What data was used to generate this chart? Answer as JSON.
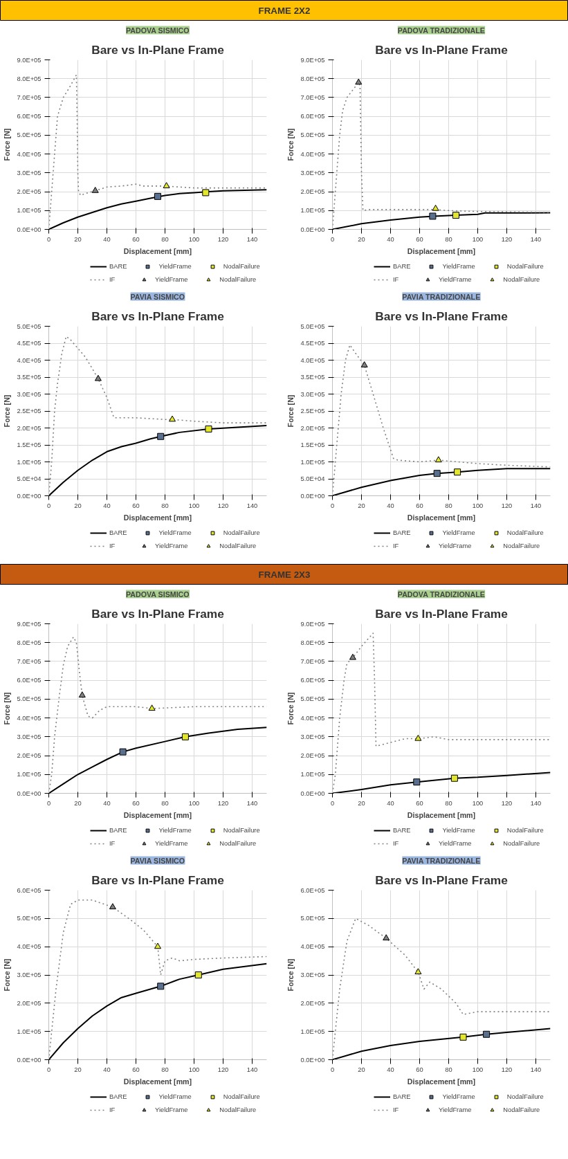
{
  "chart_data": [
    {
      "type": "other",
      "title": "FRAME 2X2"
    },
    {
      "type": "line",
      "subtitle": "PADOVA SISMICO",
      "title": "Bare vs In-Plane Frame",
      "xlabel": "Displacement [mm]",
      "ylabel": "Force [N]",
      "xlim": [
        0,
        150
      ],
      "xticks": [
        0,
        20,
        40,
        60,
        80,
        100,
        120,
        140
      ],
      "ylim": [
        0,
        900000
      ],
      "yticks": [
        {
          "value": 0,
          "label": "0.0E+00"
        },
        {
          "value": 100000,
          "label": "1.0E+05"
        },
        {
          "value": 200000,
          "label": "2.0E+05"
        },
        {
          "value": 300000,
          "label": "3.0E+05"
        },
        {
          "value": 400000,
          "label": "4.0E+05"
        },
        {
          "value": 500000,
          "label": "5.0E+05"
        },
        {
          "value": 600000,
          "label": "6.0E+05"
        },
        {
          "value": 700000,
          "label": "7.0E+05"
        },
        {
          "value": 800000,
          "label": "8.0E+05"
        },
        {
          "value": 900000,
          "label": "9.0E+05"
        }
      ],
      "grid": true,
      "legend": "bottom",
      "series": [
        {
          "name": "BARE",
          "type": "line",
          "line_style": "solid",
          "color": "#000000",
          "x": [
            0,
            10,
            20,
            30,
            40,
            50,
            60,
            70,
            80,
            90,
            100,
            110,
            120,
            130,
            150
          ],
          "values": [
            0,
            35000,
            65000,
            90000,
            115000,
            135000,
            150000,
            165000,
            180000,
            190000,
            195000,
            200000,
            205000,
            207000,
            210000
          ]
        },
        {
          "name": "YieldFrame",
          "type": "scatter",
          "marker": "square",
          "color": "#5a6f8e",
          "x": [
            75
          ],
          "values": [
            175000
          ]
        },
        {
          "name": "NodalFailure",
          "type": "scatter",
          "marker": "square",
          "color": "#e2e62c",
          "x": [
            108
          ],
          "values": [
            195000
          ]
        },
        {
          "name": "IF",
          "type": "line",
          "line_style": "dotted",
          "color": "#808080",
          "x": [
            0,
            1,
            3,
            5,
            6,
            8,
            10,
            14,
            19,
            19.5,
            20,
            20.5,
            22,
            25,
            32,
            40,
            50,
            60,
            65,
            80,
            90,
            100,
            120,
            150
          ],
          "values": [
            0,
            100000,
            300000,
            500000,
            600000,
            650000,
            700000,
            750000,
            820000,
            600000,
            300000,
            200000,
            180000,
            190000,
            205000,
            225000,
            230000,
            240000,
            230000,
            230000,
            225000,
            220000,
            220000,
            220000
          ]
        },
        {
          "name": "YieldFrame",
          "type": "scatter",
          "marker": "triangle",
          "color": "#7f7f7f",
          "x": [
            32
          ],
          "values": [
            205000
          ]
        },
        {
          "name": "NodalFailure",
          "type": "scatter",
          "marker": "triangle",
          "color": "#e2e62c",
          "x": [
            81
          ],
          "values": [
            230000
          ]
        }
      ]
    },
    {
      "type": "line",
      "subtitle": "PADOVA TRADIZIONALE",
      "title": "Bare vs In-Plane Frame",
      "xlabel": "Displacement [mm]",
      "ylabel": "Force [N]",
      "xlim": [
        0,
        150
      ],
      "xticks": [
        0,
        20,
        40,
        60,
        80,
        100,
        120,
        140
      ],
      "ylim": [
        0,
        900000
      ],
      "yticks": [
        {
          "value": 0,
          "label": "0.0E+00"
        },
        {
          "value": 100000,
          "label": "1.0E+05"
        },
        {
          "value": 200000,
          "label": "2.0E+05"
        },
        {
          "value": 300000,
          "label": "3.0E+05"
        },
        {
          "value": 400000,
          "label": "4.0E+05"
        },
        {
          "value": 500000,
          "label": "5.0E+05"
        },
        {
          "value": 600000,
          "label": "6.0E+05"
        },
        {
          "value": 700000,
          "label": "7.0E+05"
        },
        {
          "value": 800000,
          "label": "8.0E+05"
        },
        {
          "value": 900000,
          "label": "9.0E+05"
        }
      ],
      "grid": true,
      "legend": "bottom",
      "series": [
        {
          "name": "BARE",
          "type": "line",
          "line_style": "solid",
          "color": "#000000",
          "x": [
            0,
            20,
            40,
            60,
            70,
            85,
            100,
            105,
            150
          ],
          "values": [
            0,
            30000,
            50000,
            65000,
            70000,
            75000,
            80000,
            87000,
            88000
          ]
        },
        {
          "name": "YieldFrame",
          "type": "scatter",
          "marker": "square",
          "color": "#5a6f8e",
          "x": [
            69
          ],
          "values": [
            70000
          ]
        },
        {
          "name": "NodalFailure",
          "type": "scatter",
          "marker": "square",
          "color": "#e2e62c",
          "x": [
            85
          ],
          "values": [
            75000
          ]
        },
        {
          "name": "IF",
          "type": "line",
          "line_style": "dotted",
          "color": "#808080",
          "x": [
            0,
            1,
            3,
            5,
            7,
            10,
            18,
            19,
            20,
            21,
            25,
            40,
            60,
            70,
            80,
            100,
            150
          ],
          "values": [
            0,
            100000,
            300000,
            500000,
            630000,
            700000,
            780000,
            760000,
            300000,
            100000,
            105000,
            105000,
            105000,
            105000,
            100000,
            95000,
            90000
          ]
        },
        {
          "name": "YieldFrame",
          "type": "scatter",
          "marker": "triangle",
          "color": "#7f7f7f",
          "x": [
            18
          ],
          "values": [
            780000
          ]
        },
        {
          "name": "NodalFailure",
          "type": "scatter",
          "marker": "triangle",
          "color": "#e2e62c",
          "x": [
            71
          ],
          "values": [
            110000
          ]
        }
      ]
    },
    {
      "type": "line",
      "subtitle": "PAVIA SISMICO",
      "title": "Bare vs In-Plane Frame",
      "xlabel": "Displacement [mm]",
      "ylabel": "Force [N]",
      "xlim": [
        0,
        150
      ],
      "xticks": [
        0,
        20,
        40,
        60,
        80,
        100,
        120,
        140
      ],
      "ylim": [
        0,
        500000
      ],
      "yticks": [
        {
          "value": 0,
          "label": "0.0E+00"
        },
        {
          "value": 50000,
          "label": "5.0E+04"
        },
        {
          "value": 100000,
          "label": "1.0E+05"
        },
        {
          "value": 150000,
          "label": "1.5E+05"
        },
        {
          "value": 200000,
          "label": "2.0E+05"
        },
        {
          "value": 250000,
          "label": "2.5E+05"
        },
        {
          "value": 300000,
          "label": "3.0E+05"
        },
        {
          "value": 350000,
          "label": "3.5E+05"
        },
        {
          "value": 400000,
          "label": "4.0E+05"
        },
        {
          "value": 450000,
          "label": "4.5E+05"
        },
        {
          "value": 500000,
          "label": "5.0E+05"
        }
      ],
      "grid": true,
      "legend": "bottom",
      "series": [
        {
          "name": "BARE",
          "type": "line",
          "line_style": "solid",
          "color": "#000000",
          "x": [
            0,
            10,
            20,
            30,
            40,
            50,
            60,
            70,
            77,
            90,
            110,
            130,
            150
          ],
          "values": [
            0,
            40000,
            75000,
            105000,
            130000,
            145000,
            155000,
            168000,
            175000,
            187000,
            197000,
            202000,
            207000
          ]
        },
        {
          "name": "YieldFrame",
          "type": "scatter",
          "marker": "square",
          "color": "#5a6f8e",
          "x": [
            77
          ],
          "values": [
            175000
          ]
        },
        {
          "name": "NodalFailure",
          "type": "scatter",
          "marker": "square",
          "color": "#e2e62c",
          "x": [
            110
          ],
          "values": [
            197000
          ]
        },
        {
          "name": "IF",
          "type": "line",
          "line_style": "dotted",
          "color": "#808080",
          "x": [
            0,
            2,
            4,
            6,
            9,
            12,
            15,
            20,
            25,
            30,
            34,
            40,
            44,
            45,
            60,
            80,
            85,
            100,
            120,
            150
          ],
          "values": [
            0,
            100000,
            250000,
            330000,
            420000,
            470000,
            460000,
            435000,
            410000,
            375000,
            345000,
            290000,
            240000,
            230000,
            230000,
            225000,
            225000,
            220000,
            215000,
            215000
          ]
        },
        {
          "name": "YieldFrame",
          "type": "scatter",
          "marker": "triangle",
          "color": "#7f7f7f",
          "x": [
            34
          ],
          "values": [
            345000
          ]
        },
        {
          "name": "NodalFailure",
          "type": "scatter",
          "marker": "triangle",
          "color": "#e2e62c",
          "x": [
            85
          ],
          "values": [
            225000
          ]
        }
      ]
    },
    {
      "type": "line",
      "subtitle": "PAVIA TRADIZIONALE",
      "title": "Bare vs In-Plane Frame",
      "xlabel": "Displacement [mm]",
      "ylabel": "Force [N]",
      "xlim": [
        0,
        150
      ],
      "xticks": [
        0,
        20,
        40,
        60,
        80,
        100,
        120,
        140
      ],
      "ylim": [
        0,
        500000
      ],
      "yticks": [
        {
          "value": 0,
          "label": "0.0E+00"
        },
        {
          "value": 50000,
          "label": "5.0E+04"
        },
        {
          "value": 100000,
          "label": "1.0E+05"
        },
        {
          "value": 150000,
          "label": "1.5E+05"
        },
        {
          "value": 200000,
          "label": "2.0E+05"
        },
        {
          "value": 250000,
          "label": "2.5E+05"
        },
        {
          "value": 300000,
          "label": "3.0E+05"
        },
        {
          "value": 350000,
          "label": "3.5E+05"
        },
        {
          "value": 400000,
          "label": "4.0E+05"
        },
        {
          "value": 450000,
          "label": "4.5E+05"
        },
        {
          "value": 500000,
          "label": "5.0E+05"
        }
      ],
      "grid": true,
      "legend": "bottom",
      "series": [
        {
          "name": "BARE",
          "type": "line",
          "line_style": "solid",
          "color": "#000000",
          "x": [
            0,
            20,
            40,
            60,
            72,
            86,
            100,
            120,
            150
          ],
          "values": [
            0,
            25000,
            45000,
            60000,
            66000,
            70000,
            75000,
            80000,
            80000
          ]
        },
        {
          "name": "YieldFrame",
          "type": "scatter",
          "marker": "square",
          "color": "#5a6f8e",
          "x": [
            72
          ],
          "values": [
            66000
          ]
        },
        {
          "name": "NodalFailure",
          "type": "scatter",
          "marker": "square",
          "color": "#e2e62c",
          "x": [
            86
          ],
          "values": [
            70000
          ]
        },
        {
          "name": "IF",
          "type": "line",
          "line_style": "dotted",
          "color": "#808080",
          "x": [
            0,
            1,
            3,
            6,
            9,
            12,
            16,
            22,
            28,
            35,
            42,
            45,
            60,
            73,
            100,
            120,
            150
          ],
          "values": [
            0,
            50000,
            150000,
            300000,
            400000,
            445000,
            420000,
            385000,
            300000,
            200000,
            110000,
            105000,
            100000,
            105000,
            95000,
            90000,
            85000
          ]
        },
        {
          "name": "YieldFrame",
          "type": "scatter",
          "marker": "triangle",
          "color": "#7f7f7f",
          "x": [
            22
          ],
          "values": [
            385000
          ]
        },
        {
          "name": "NodalFailure",
          "type": "scatter",
          "marker": "triangle",
          "color": "#e2e62c",
          "x": [
            73
          ],
          "values": [
            105000
          ]
        }
      ]
    },
    {
      "type": "other",
      "title": "FRAME 2X3"
    },
    {
      "type": "line",
      "subtitle": "PADOVA SISMICO",
      "title": "Bare vs In-Plane Frame",
      "xlabel": "Displacement [mm]",
      "ylabel": "Force [N]",
      "xlim": [
        0,
        150
      ],
      "xticks": [
        0,
        20,
        40,
        60,
        80,
        100,
        120,
        140
      ],
      "ylim": [
        0,
        900000
      ],
      "yticks": [
        {
          "value": 0,
          "label": "0.0E+00"
        },
        {
          "value": 100000,
          "label": "1.0E+05"
        },
        {
          "value": 200000,
          "label": "2.0E+05"
        },
        {
          "value": 300000,
          "label": "3.0E+05"
        },
        {
          "value": 400000,
          "label": "4.0E+05"
        },
        {
          "value": 500000,
          "label": "5.0E+05"
        },
        {
          "value": 600000,
          "label": "6.0E+05"
        },
        {
          "value": 700000,
          "label": "7.0E+05"
        },
        {
          "value": 800000,
          "label": "8.0E+05"
        },
        {
          "value": 900000,
          "label": "9.0E+05"
        }
      ],
      "grid": true,
      "legend": "bottom",
      "series": [
        {
          "name": "BARE",
          "type": "line",
          "line_style": "solid",
          "color": "#000000",
          "x": [
            0,
            10,
            20,
            30,
            40,
            51,
            60,
            80,
            94,
            110,
            130,
            150
          ],
          "values": [
            0,
            50000,
            100000,
            140000,
            180000,
            220000,
            240000,
            275000,
            300000,
            320000,
            340000,
            350000
          ]
        },
        {
          "name": "YieldFrame",
          "type": "scatter",
          "marker": "square",
          "color": "#5a6f8e",
          "x": [
            51
          ],
          "values": [
            220000
          ]
        },
        {
          "name": "NodalFailure",
          "type": "scatter",
          "marker": "square",
          "color": "#e2e62c",
          "x": [
            94
          ],
          "values": [
            300000
          ]
        },
        {
          "name": "IF",
          "type": "line",
          "line_style": "dotted",
          "color": "#808080",
          "x": [
            0,
            2,
            4,
            7,
            10,
            13,
            17,
            19,
            21,
            23,
            27,
            30,
            35,
            40,
            60,
            71,
            100,
            150
          ],
          "values": [
            0,
            100000,
            300000,
            500000,
            680000,
            780000,
            830000,
            800000,
            650000,
            520000,
            410000,
            400000,
            440000,
            460000,
            460000,
            450000,
            460000,
            460000
          ]
        },
        {
          "name": "YieldFrame",
          "type": "scatter",
          "marker": "triangle",
          "color": "#7f7f7f",
          "x": [
            23
          ],
          "values": [
            520000
          ]
        },
        {
          "name": "NodalFailure",
          "type": "scatter",
          "marker": "triangle",
          "color": "#e2e62c",
          "x": [
            71
          ],
          "values": [
            450000
          ]
        }
      ]
    },
    {
      "type": "line",
      "subtitle": "PADOVA TRADIZIONALE",
      "title": "Bare vs In-Plane Frame",
      "xlabel": "Displacement [mm]",
      "ylabel": "Force [N]",
      "xlim": [
        0,
        150
      ],
      "xticks": [
        0,
        20,
        40,
        60,
        80,
        100,
        120,
        140
      ],
      "ylim": [
        0,
        900000
      ],
      "yticks": [
        {
          "value": 0,
          "label": "0.0E+00"
        },
        {
          "value": 100000,
          "label": "1.0E+05"
        },
        {
          "value": 200000,
          "label": "2.0E+05"
        },
        {
          "value": 300000,
          "label": "3.0E+05"
        },
        {
          "value": 400000,
          "label": "4.0E+05"
        },
        {
          "value": 500000,
          "label": "5.0E+05"
        },
        {
          "value": 600000,
          "label": "6.0E+05"
        },
        {
          "value": 700000,
          "label": "7.0E+05"
        },
        {
          "value": 800000,
          "label": "8.0E+05"
        },
        {
          "value": 900000,
          "label": "9.0E+05"
        }
      ],
      "grid": true,
      "legend": "bottom",
      "series": [
        {
          "name": "BARE",
          "type": "line",
          "line_style": "solid",
          "color": "#000000",
          "x": [
            0,
            20,
            40,
            58,
            84,
            100,
            120,
            150
          ],
          "values": [
            0,
            20000,
            45000,
            60000,
            80000,
            85000,
            95000,
            110000
          ]
        },
        {
          "name": "YieldFrame",
          "type": "scatter",
          "marker": "square",
          "color": "#5a6f8e",
          "x": [
            58
          ],
          "values": [
            60000
          ]
        },
        {
          "name": "NodalFailure",
          "type": "scatter",
          "marker": "square",
          "color": "#e2e62c",
          "x": [
            84
          ],
          "values": [
            80000
          ]
        },
        {
          "name": "IF",
          "type": "line",
          "line_style": "dotted",
          "color": "#808080",
          "x": [
            0,
            2,
            5,
            8,
            10,
            14,
            20,
            28,
            29,
            30,
            35,
            40,
            50,
            59,
            70,
            80,
            150
          ],
          "values": [
            0,
            100000,
            400000,
            600000,
            690000,
            720000,
            780000,
            850000,
            600000,
            250000,
            260000,
            270000,
            290000,
            290000,
            300000,
            285000,
            285000
          ]
        },
        {
          "name": "YieldFrame",
          "type": "scatter",
          "marker": "triangle",
          "color": "#7f7f7f",
          "x": [
            14
          ],
          "values": [
            720000
          ]
        },
        {
          "name": "NodalFailure",
          "type": "scatter",
          "marker": "triangle",
          "color": "#e2e62c",
          "x": [
            59
          ],
          "values": [
            290000
          ]
        }
      ]
    },
    {
      "type": "line",
      "subtitle": "PAVIA SISMICO",
      "title": "Bare vs In-Plane Frame",
      "xlabel": "Displacement [mm]",
      "ylabel": "Force [N]",
      "xlim": [
        0,
        150
      ],
      "xticks": [
        0,
        20,
        40,
        60,
        80,
        100,
        120,
        140
      ],
      "ylim": [
        0,
        600000
      ],
      "yticks": [
        {
          "value": 0,
          "label": "0.0E+00"
        },
        {
          "value": 100000,
          "label": "1.0E+05"
        },
        {
          "value": 200000,
          "label": "2.0E+05"
        },
        {
          "value": 300000,
          "label": "3.0E+05"
        },
        {
          "value": 400000,
          "label": "4.0E+05"
        },
        {
          "value": 500000,
          "label": "5.0E+05"
        },
        {
          "value": 600000,
          "label": "6.0E+05"
        }
      ],
      "grid": true,
      "legend": "bottom",
      "series": [
        {
          "name": "BARE",
          "type": "line",
          "line_style": "solid",
          "color": "#000000",
          "x": [
            0,
            10,
            20,
            30,
            40,
            50,
            60,
            77,
            90,
            103,
            120,
            150
          ],
          "values": [
            0,
            60000,
            110000,
            155000,
            190000,
            220000,
            235000,
            260000,
            285000,
            300000,
            320000,
            340000
          ]
        },
        {
          "name": "YieldFrame",
          "type": "scatter",
          "marker": "square",
          "color": "#5a6f8e",
          "x": [
            77
          ],
          "values": [
            260000
          ]
        },
        {
          "name": "NodalFailure",
          "type": "scatter",
          "marker": "square",
          "color": "#e2e62c",
          "x": [
            103
          ],
          "values": [
            300000
          ]
        },
        {
          "name": "IF",
          "type": "line",
          "line_style": "dotted",
          "color": "#808080",
          "x": [
            0,
            2,
            5,
            10,
            15,
            20,
            30,
            44,
            55,
            65,
            75,
            77,
            80,
            85,
            90,
            100,
            120,
            150
          ],
          "values": [
            0,
            100000,
            250000,
            450000,
            550000,
            565000,
            565000,
            540000,
            500000,
            460000,
            400000,
            300000,
            350000,
            360000,
            350000,
            355000,
            360000,
            365000
          ]
        },
        {
          "name": "YieldFrame",
          "type": "scatter",
          "marker": "triangle",
          "color": "#7f7f7f",
          "x": [
            44
          ],
          "values": [
            540000
          ]
        },
        {
          "name": "NodalFailure",
          "type": "scatter",
          "marker": "triangle",
          "color": "#e2e62c",
          "x": [
            75
          ],
          "values": [
            400000
          ]
        }
      ]
    },
    {
      "type": "line",
      "subtitle": "PAVIA TRADIZIONALE",
      "title": "Bare vs In-Plane Frame",
      "xlabel": "Displacement [mm]",
      "ylabel": "Force [N]",
      "xlim": [
        0,
        150
      ],
      "xticks": [
        0,
        20,
        40,
        60,
        80,
        100,
        120,
        140
      ],
      "ylim": [
        0,
        600000
      ],
      "yticks": [
        {
          "value": 0,
          "label": "0.0E+00"
        },
        {
          "value": 100000,
          "label": "1.0E+05"
        },
        {
          "value": 200000,
          "label": "2.0E+05"
        },
        {
          "value": 300000,
          "label": "3.0E+05"
        },
        {
          "value": 400000,
          "label": "4.0E+05"
        },
        {
          "value": 500000,
          "label": "5.0E+05"
        },
        {
          "value": 600000,
          "label": "6.0E+05"
        }
      ],
      "grid": true,
      "legend": "bottom",
      "series": [
        {
          "name": "BARE",
          "type": "line",
          "line_style": "solid",
          "color": "#000000",
          "x": [
            0,
            20,
            40,
            60,
            90,
            106,
            120,
            150
          ],
          "values": [
            0,
            30000,
            50000,
            65000,
            80000,
            90000,
            97000,
            110000
          ]
        },
        {
          "name": "YieldFrame",
          "type": "scatter",
          "marker": "square",
          "color": "#5a6f8e",
          "x": [
            106
          ],
          "values": [
            90000
          ]
        },
        {
          "name": "NodalFailure",
          "type": "scatter",
          "marker": "square",
          "color": "#e2e62c",
          "x": [
            90
          ],
          "values": [
            80000
          ]
        },
        {
          "name": "IF",
          "type": "line",
          "line_style": "dotted",
          "color": "#808080",
          "x": [
            0,
            2,
            5,
            10,
            16,
            25,
            37,
            50,
            59,
            63,
            67,
            75,
            85,
            90,
            100,
            150
          ],
          "values": [
            0,
            100000,
            250000,
            420000,
            500000,
            475000,
            430000,
            370000,
            310000,
            250000,
            275000,
            250000,
            200000,
            160000,
            170000,
            170000
          ]
        },
        {
          "name": "YieldFrame",
          "type": "scatter",
          "marker": "triangle",
          "color": "#7f7f7f",
          "x": [
            37
          ],
          "values": [
            430000
          ]
        },
        {
          "name": "NodalFailure",
          "type": "scatter",
          "marker": "triangle",
          "color": "#e2e62c",
          "x": [
            59
          ],
          "values": [
            310000
          ]
        }
      ]
    }
  ]
}
